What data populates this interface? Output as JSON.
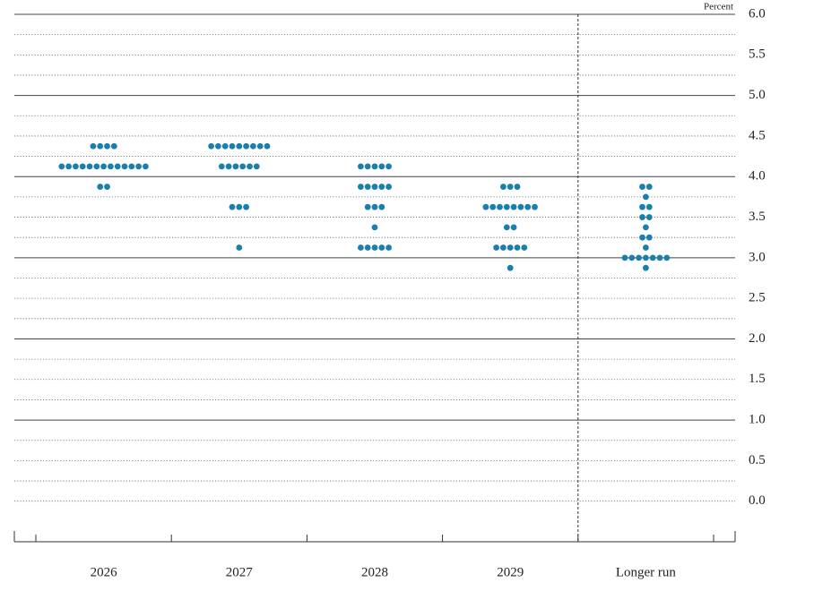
{
  "chart_data": {
    "type": "dot",
    "y_axis_label": "Percent",
    "categories": [
      "2026",
      "2027",
      "2028",
      "2029",
      "Longer run"
    ],
    "dots": [
      [
        4.375,
        4.375,
        4.375,
        4.375,
        4.125,
        4.125,
        4.125,
        4.125,
        4.125,
        4.125,
        4.125,
        4.125,
        4.125,
        4.125,
        4.125,
        4.125,
        4.125,
        3.875,
        3.875
      ],
      [
        4.375,
        4.375,
        4.375,
        4.375,
        4.375,
        4.375,
        4.375,
        4.375,
        4.375,
        4.125,
        4.125,
        4.125,
        4.125,
        4.125,
        4.125,
        3.625,
        3.625,
        3.625,
        3.125
      ],
      [
        4.125,
        4.125,
        4.125,
        4.125,
        4.125,
        3.875,
        3.875,
        3.875,
        3.875,
        3.875,
        3.625,
        3.625,
        3.625,
        3.375,
        3.125,
        3.125,
        3.125,
        3.125,
        3.125
      ],
      [
        3.875,
        3.875,
        3.875,
        3.625,
        3.625,
        3.625,
        3.625,
        3.625,
        3.625,
        3.625,
        3.625,
        3.375,
        3.375,
        3.125,
        3.125,
        3.125,
        3.125,
        3.125,
        2.875
      ],
      [
        3.875,
        3.875,
        3.75,
        3.625,
        3.625,
        3.5,
        3.5,
        3.375,
        3.25,
        3.25,
        3.125,
        3.0,
        3.0,
        3.0,
        3.0,
        3.0,
        3.0,
        3.0,
        2.875
      ]
    ],
    "color": "#1b7fae",
    "ylim": [
      -0.5,
      6.0
    ],
    "yticks": [
      {
        "value": 0,
        "label": "0.0"
      },
      0.5,
      {
        "value": 1,
        "label": "1.0"
      },
      1.5,
      {
        "value": 2,
        "label": "2.0"
      },
      2.5,
      {
        "value": 3,
        "label": "3.0"
      },
      3.5,
      {
        "value": 4,
        "label": "4.0"
      },
      4.5,
      {
        "value": 5,
        "label": "5.0"
      },
      5.5,
      {
        "value": 6,
        "label": "6.0"
      }
    ],
    "grid": true
  }
}
